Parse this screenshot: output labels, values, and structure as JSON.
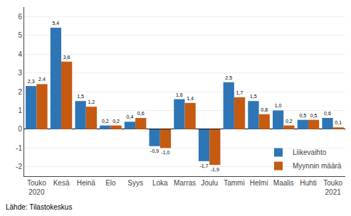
{
  "chart_data": {
    "type": "bar",
    "categories": [
      "Touko\n2020",
      "Kesä",
      "Heinä",
      "Elo",
      "Syys",
      "Loka",
      "Marras",
      "Joulu",
      "Tammi",
      "Helmi",
      "Maalis",
      "Huhti",
      "Touko\n2021"
    ],
    "series": [
      {
        "name": "Liikevaihto",
        "color": "#2E75B6",
        "values": [
          2.3,
          5.4,
          1.5,
          0.2,
          0.4,
          -0.9,
          1.6,
          -1.7,
          2.5,
          1.5,
          1.0,
          0.5,
          0.6
        ],
        "value_labels": [
          "2,3",
          "5,4",
          "1,5",
          "0,2",
          "0,4",
          "-0,9",
          "1,6",
          "-1,7",
          "2,5",
          "1,5",
          "1,0",
          "0,5",
          "0,6"
        ]
      },
      {
        "name": "Myynnin määrä",
        "color": "#C55A11",
        "values": [
          2.4,
          3.6,
          1.2,
          0.2,
          0.6,
          -1.0,
          1.4,
          -1.9,
          1.7,
          0.8,
          0.2,
          0.5,
          0.1
        ],
        "value_labels": [
          "2,4",
          "3,6",
          "1,2",
          "0,2",
          "0,6",
          "-1,0",
          "1,4",
          "-1,9",
          "1,7",
          "0,8",
          "0,2",
          "0,5",
          "0,1"
        ]
      }
    ],
    "ylim": [
      -2.5,
      6.5
    ],
    "yticks": [
      -2,
      -1,
      0,
      1,
      2,
      3,
      4,
      5,
      6
    ],
    "grid": true,
    "legend": "lower right",
    "data_labels": true,
    "annotations": [
      {
        "text": "Lähde: Tilastokeskus"
      }
    ]
  }
}
